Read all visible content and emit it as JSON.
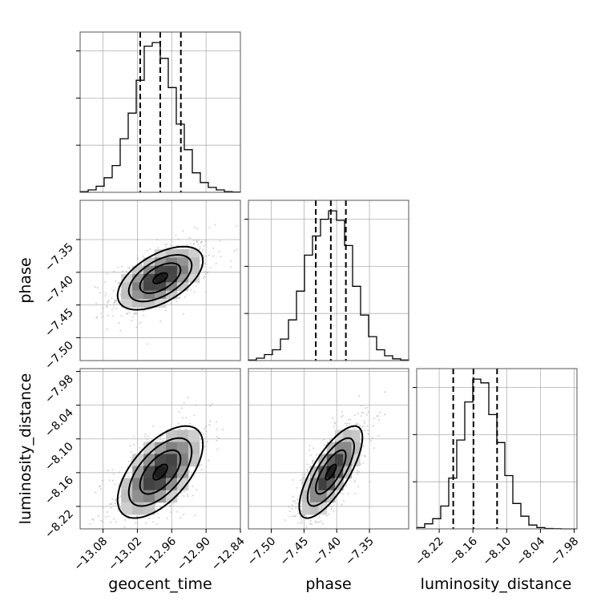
{
  "chart_data": {
    "type": "corner",
    "parameters": [
      "geocent_time",
      "phase",
      "luminosity_distance"
    ],
    "grid": true,
    "ranges": {
      "geocent_time": [
        -13.12,
        -12.84
      ],
      "phase": [
        -7.535,
        -7.29
      ],
      "luminosity_distance": [
        -8.26,
        -7.975
      ]
    },
    "ticks": {
      "geocent_time": [
        "-13.08",
        "-13.02",
        "-12.96",
        "-12.90",
        "-12.84"
      ],
      "phase": [
        "-7.50",
        "-7.45",
        "-7.40",
        "-7.35"
      ],
      "luminosity_distance": [
        "-8.22",
        "-8.16",
        "-8.10",
        "-8.04",
        "-7.98"
      ]
    },
    "tick_values": {
      "geocent_time": [
        -13.08,
        -13.02,
        -12.96,
        -12.9,
        -12.84
      ],
      "phase": [
        -7.5,
        -7.45,
        -7.4,
        -7.35
      ],
      "luminosity_distance": [
        -8.22,
        -8.16,
        -8.1,
        -8.04,
        -7.98
      ]
    },
    "quantiles": {
      "geocent_time": [
        -13.015,
        -12.98,
        -12.944
      ],
      "phase": [
        -7.432,
        -7.409,
        -7.386
      ],
      "luminosity_distance": [
        -8.195,
        -8.159,
        -8.117
      ]
    },
    "histograms": {
      "geocent_time": {
        "edges": [
          -13.12,
          -13.106,
          -13.092,
          -13.078,
          -13.064,
          -13.05,
          -13.036,
          -13.022,
          -13.008,
          -12.994,
          -12.98,
          -12.966,
          -12.952,
          -12.938,
          -12.924,
          -12.91,
          -12.896,
          -12.882,
          -12.868,
          -12.854,
          -12.84
        ],
        "counts": [
          0.5,
          2,
          5,
          12,
          22,
          44,
          65,
          92,
          120,
          123,
          110,
          86,
          56,
          35,
          16,
          8,
          4,
          2,
          0.5,
          0.2
        ]
      },
      "phase": {
        "edges": [
          -7.535,
          -7.52275,
          -7.5105,
          -7.49825,
          -7.486,
          -7.47375,
          -7.4615,
          -7.44925,
          -7.437,
          -7.42475,
          -7.4125,
          -7.40025,
          -7.388,
          -7.37575,
          -7.3635,
          -7.35125,
          -7.339,
          -7.32675,
          -7.3145,
          -7.30225,
          -7.29
        ],
        "counts": [
          0.5,
          2,
          5,
          9,
          18,
          34,
          58,
          88,
          104,
          118,
          125,
          117,
          96,
          62,
          38,
          20,
          9,
          4,
          1.5,
          0.5
        ]
      },
      "luminosity_distance": {
        "edges": [
          -8.26,
          -8.24575,
          -8.2315,
          -8.21725,
          -8.203,
          -8.18875,
          -8.1745,
          -8.16025,
          -8.146,
          -8.13175,
          -8.1175,
          -8.10325,
          -8.089,
          -8.07475,
          -8.0605,
          -8.04625,
          -8.032,
          -8.01775,
          -8.0035,
          -7.98925,
          -7.975
        ],
        "counts": [
          1,
          4,
          8,
          18,
          40,
          70,
          100,
          118,
          115,
          90,
          68,
          42,
          20,
          10,
          3,
          1,
          0.3,
          0.1,
          0,
          0
        ]
      }
    },
    "correlations": {
      "phase_vs_geocent_time": 0.55,
      "luminosity_distance_vs_geocent_time": 0.6,
      "luminosity_distance_vs_phase": 0.75
    }
  }
}
